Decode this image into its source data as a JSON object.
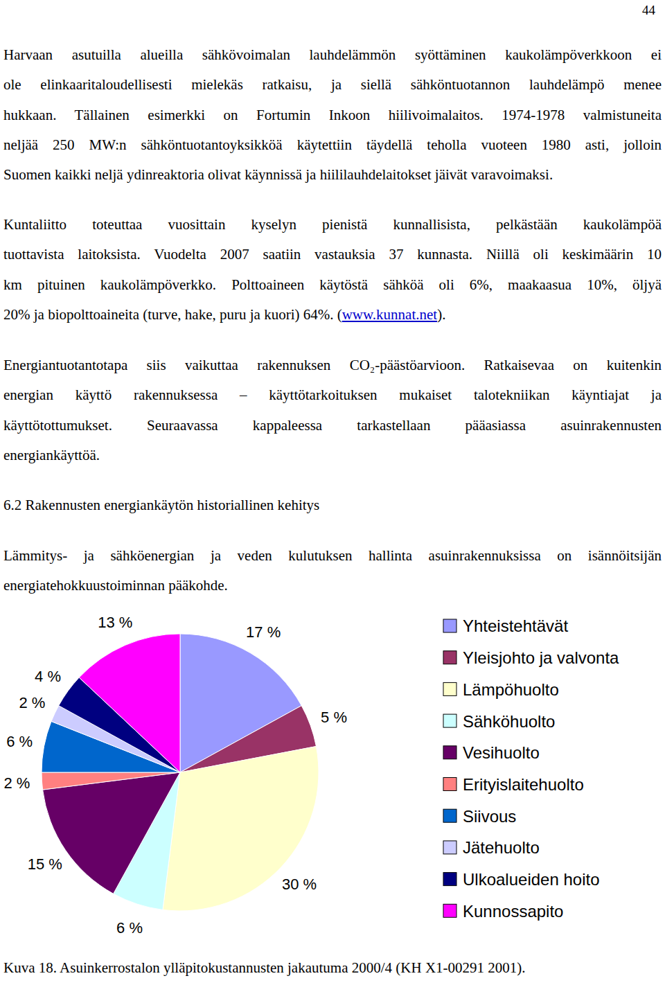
{
  "document": {
    "page_number": "44",
    "body": [
      {
        "lines": [
          "Harvaan asutuilla alueilla sähkövoimalan lauhdelämmön syöttäminen kaukolämpöverkkoon ei",
          "ole elinkaaritaloudellisesti mielekäs ratkaisu, ja siellä sähköntuotannon lauhdelämpö menee",
          "hukkaan. Tällainen esimerkki on Fortumin Inkoon hiilivoimalaitos. 1974-1978 valmistuneita",
          "neljää 250 MW:n sähköntuotantoyksikköä käytettiin täydellä teholla vuoteen 1980 asti, jolloin",
          "Suomen kaikki neljä ydinreaktoria olivat käynnissä ja hiililauhdelaitokset jäivät varavoimaksi."
        ]
      },
      {
        "lines": [
          "Kuntaliitto toteuttaa vuosittain kyselyn pienistä kunnallisista, pelkästään kaukolämpöä",
          "tuottavista laitoksista. Vuodelta 2007 saatiin vastauksia 37 kunnasta. Niillä oli keskimäärin 10",
          "km pituinen kaukolämpöverkko. Polttoaineen käytöstä sähköä oli 6%, maakaasua 10%, öljyä",
          {
            "parts": [
              {
                "text": "20% ja biopolttoaineita (turve, hake, puru ja kuori) 64%. ("
              },
              {
                "text": "www.kunnat.net",
                "style": "link"
              },
              {
                "text": ")."
              }
            ]
          }
        ]
      },
      {
        "lines": [
          "Energiantuotantotapa siis vaikuttaa rakennuksen CO₂-päästöarvioon. Ratkaisevaa on kuitenkin",
          "energian käyttö rakennuksessa – käyttötarkoituksen mukaiset talotekniikan käyntiajat ja",
          "käyttötottumukset. Seuraavassa kappaleessa tarkastellaan pääasiassa asuinrakennusten",
          "energiankäyttöä."
        ]
      },
      {
        "heading": "6.2 Rakennusten energiankäytön historiallinen kehitys"
      },
      {
        "lines": [
          "Lämmitys- ja sähköenergian ja veden kulutuksen hallinta asuinrakennuksissa on isännöitsijän",
          "energiatehokkuustoiminnan pääkohde."
        ]
      }
    ],
    "caption": "Kuva 18. Asuinkerrostalon ylläpitokustannusten jakautuma 2000/4 (KH X1-00291 2001)."
  },
  "chart_data": {
    "type": "pie",
    "categories": [
      "Yhteistehtävät",
      "Yleisjohto ja valvonta",
      "Lämpöhuolto",
      "Sähköhuolto",
      "Vesihuolto",
      "Erityislaitehuolto",
      "Siivous",
      "Jätehuolto",
      "Ulkoalueiden hoito",
      "Kunnossapito"
    ],
    "values": [
      17,
      5,
      30,
      6,
      15,
      2,
      6,
      2,
      4,
      13
    ],
    "value_labels": [
      "17 %",
      "5 %",
      "30 %",
      "6 %",
      "15 %",
      "2 %",
      "6 %",
      "2 %",
      "4 %",
      "13 %"
    ],
    "colors": [
      "#9999ff",
      "#993366",
      "#ffffcc",
      "#ccffff",
      "#660066",
      "#ff8080",
      "#0066cc",
      "#ccccff",
      "#000080",
      "#ff00ff"
    ],
    "data_labels": true,
    "legend": "right"
  }
}
